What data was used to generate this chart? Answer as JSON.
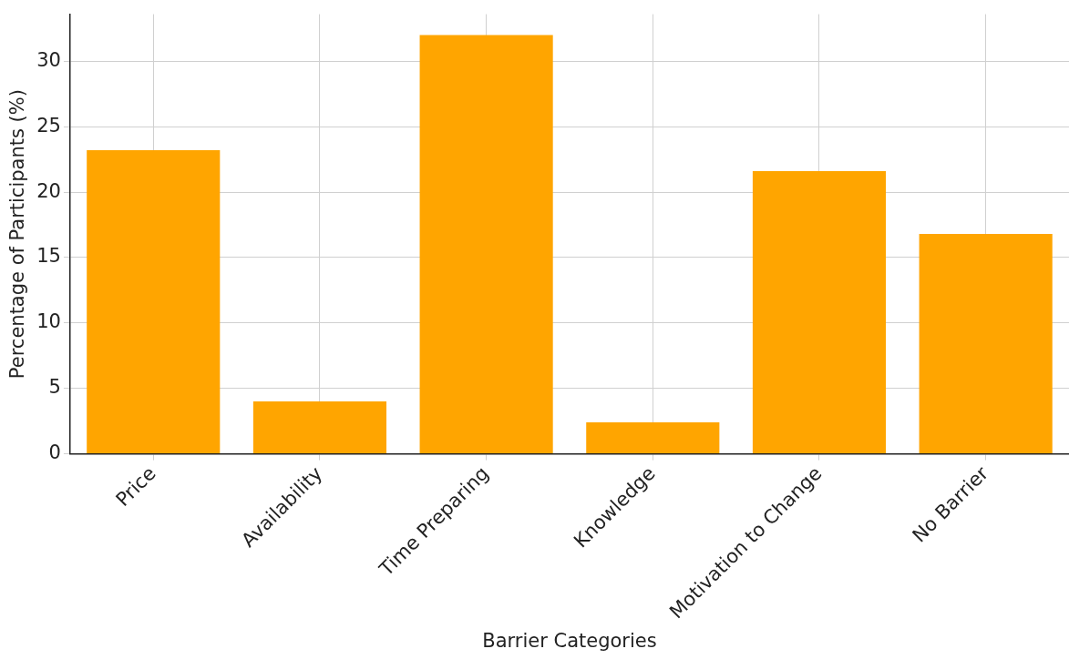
{
  "chart_data": {
    "type": "bar",
    "xlabel": "Barrier Categories",
    "ylabel": "Percentage of Participants (%)",
    "categories": [
      "Price",
      "Availability",
      "Time Preparing",
      "Knowledge",
      "Motivation to Change",
      "No Barrier"
    ],
    "values": [
      23.2,
      4.0,
      32.0,
      2.4,
      21.6,
      16.8
    ],
    "color": "#ffa500",
    "ylim": [
      0,
      33.6
    ],
    "yticks": [
      0,
      5,
      10,
      15,
      20,
      25,
      30
    ],
    "grid": true
  }
}
